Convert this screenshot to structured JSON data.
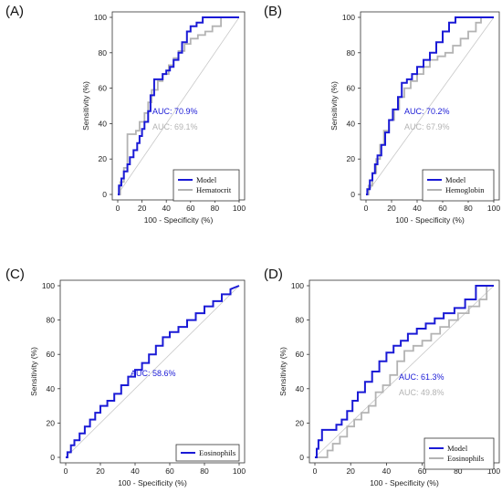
{
  "figure": {
    "panels": [
      "(A)",
      "(B)",
      "(C)",
      "(D)"
    ]
  },
  "colors": {
    "model": "#1a1ad6",
    "comparator": "#b3b3b3",
    "diagonal": "#c8c8c8",
    "axis": "#333333"
  },
  "chart_data": [
    {
      "type": "line",
      "panel": "(A)",
      "xlabel": "100 - Specificity (%)",
      "ylabel": "Sensitivity (%)",
      "xlim": [
        0,
        100
      ],
      "ylim": [
        0,
        100
      ],
      "xticks": [
        0,
        20,
        40,
        60,
        80,
        100
      ],
      "yticks": [
        0,
        20,
        40,
        60,
        80,
        100
      ],
      "legend_position": "bottom-right",
      "annotations": [
        {
          "text": "AUC: 70.9%",
          "series": "Model"
        },
        {
          "text": "AUC: 69.1%",
          "series": "Hematocrit"
        }
      ],
      "series": [
        {
          "name": "Model",
          "color_key": "model",
          "x": [
            0,
            1,
            1,
            3,
            3,
            5,
            5,
            8,
            8,
            10,
            10,
            13,
            13,
            16,
            16,
            18,
            18,
            20,
            20,
            22,
            22,
            25,
            25,
            27,
            27,
            30,
            30,
            33,
            33,
            37,
            37,
            40,
            40,
            43,
            43,
            46,
            46,
            50,
            50,
            53,
            53,
            57,
            57,
            60,
            60,
            65,
            65,
            70,
            70,
            100
          ],
          "y": [
            0,
            0,
            5,
            5,
            9,
            9,
            13,
            13,
            17,
            17,
            21,
            21,
            25,
            25,
            29,
            29,
            33,
            33,
            37,
            37,
            41,
            41,
            47,
            47,
            56,
            56,
            65,
            65,
            65,
            65,
            68,
            68,
            70,
            70,
            72,
            72,
            76,
            76,
            80,
            80,
            86,
            86,
            92,
            92,
            95,
            95,
            97,
            97,
            100,
            100
          ]
        },
        {
          "name": "Hematocrit",
          "color_key": "comparator",
          "x": [
            0,
            2,
            2,
            5,
            5,
            8,
            8,
            10,
            10,
            15,
            15,
            18,
            18,
            22,
            22,
            25,
            25,
            28,
            28,
            33,
            33,
            37,
            37,
            42,
            42,
            46,
            46,
            50,
            50,
            55,
            55,
            60,
            60,
            66,
            66,
            72,
            72,
            78,
            78,
            85,
            85,
            88,
            88,
            100
          ],
          "y": [
            0,
            0,
            7,
            7,
            15,
            15,
            34,
            34,
            34,
            34,
            36,
            36,
            41,
            41,
            46,
            46,
            52,
            52,
            59,
            59,
            64,
            64,
            68,
            68,
            73,
            73,
            77,
            77,
            81,
            81,
            85,
            85,
            88,
            88,
            90,
            90,
            92,
            92,
            95,
            95,
            100,
            100,
            100,
            100
          ]
        }
      ]
    },
    {
      "type": "line",
      "panel": "(B)",
      "xlabel": "100 - Specificity (%)",
      "ylabel": "Sensitivity (%)",
      "xlim": [
        0,
        100
      ],
      "ylim": [
        0,
        100
      ],
      "xticks": [
        0,
        20,
        40,
        60,
        80,
        100
      ],
      "yticks": [
        0,
        20,
        40,
        60,
        80,
        100
      ],
      "legend_position": "bottom-right",
      "annotations": [
        {
          "text": "AUC: 70.2%",
          "series": "Model"
        },
        {
          "text": "AUC: 67.9%",
          "series": "Hemoglobin"
        }
      ],
      "series": [
        {
          "name": "Model",
          "color_key": "model",
          "x": [
            0,
            1,
            1,
            3,
            3,
            5,
            5,
            7,
            7,
            9,
            9,
            12,
            12,
            15,
            15,
            18,
            18,
            21,
            21,
            25,
            25,
            28,
            28,
            32,
            32,
            36,
            36,
            40,
            40,
            45,
            45,
            50,
            50,
            55,
            55,
            60,
            60,
            65,
            65,
            70,
            70,
            100
          ],
          "y": [
            0,
            0,
            3,
            3,
            8,
            8,
            12,
            12,
            17,
            17,
            22,
            22,
            28,
            28,
            35,
            35,
            42,
            42,
            48,
            48,
            55,
            55,
            63,
            63,
            65,
            65,
            68,
            68,
            72,
            72,
            76,
            76,
            80,
            80,
            86,
            86,
            92,
            92,
            97,
            97,
            100,
            100
          ]
        },
        {
          "name": "Hemoglobin",
          "color_key": "comparator",
          "x": [
            0,
            2,
            2,
            5,
            5,
            8,
            8,
            11,
            11,
            14,
            14,
            18,
            18,
            22,
            22,
            26,
            26,
            30,
            30,
            35,
            35,
            40,
            40,
            45,
            45,
            50,
            50,
            56,
            56,
            62,
            62,
            68,
            68,
            74,
            74,
            80,
            80,
            86,
            86,
            90,
            90,
            100
          ],
          "y": [
            0,
            0,
            5,
            5,
            12,
            12,
            20,
            20,
            28,
            28,
            36,
            36,
            42,
            42,
            48,
            48,
            55,
            55,
            60,
            60,
            64,
            64,
            68,
            68,
            72,
            72,
            76,
            76,
            78,
            78,
            80,
            80,
            84,
            84,
            88,
            88,
            92,
            92,
            97,
            97,
            100,
            100
          ]
        }
      ]
    },
    {
      "type": "line",
      "panel": "(C)",
      "xlabel": "100 - Specificity (%)",
      "ylabel": "Sensitivity (%)",
      "xlim": [
        0,
        100
      ],
      "ylim": [
        0,
        100
      ],
      "xticks": [
        0,
        20,
        40,
        60,
        80,
        100
      ],
      "yticks": [
        0,
        20,
        40,
        60,
        80,
        100
      ],
      "legend_position": "bottom-right",
      "annotations": [
        {
          "text": "AUC: 58.6%",
          "series": "Eosinophils"
        }
      ],
      "series": [
        {
          "name": "Eosinophils",
          "color_key": "model",
          "x": [
            0,
            1,
            1,
            3,
            3,
            5,
            5,
            8,
            8,
            11,
            11,
            14,
            14,
            17,
            17,
            20,
            20,
            24,
            24,
            28,
            28,
            32,
            32,
            36,
            36,
            40,
            40,
            44,
            44,
            48,
            48,
            52,
            52,
            56,
            56,
            60,
            60,
            65,
            65,
            70,
            70,
            75,
            75,
            80,
            80,
            85,
            85,
            90,
            90,
            95,
            95,
            100
          ],
          "y": [
            0,
            0,
            3,
            3,
            7,
            7,
            10,
            10,
            14,
            14,
            18,
            18,
            22,
            22,
            26,
            26,
            30,
            30,
            33,
            33,
            37,
            37,
            42,
            42,
            47,
            47,
            51,
            51,
            55,
            55,
            60,
            60,
            65,
            65,
            70,
            70,
            73,
            73,
            76,
            76,
            80,
            80,
            84,
            84,
            88,
            88,
            91,
            91,
            95,
            95,
            98,
            100
          ]
        }
      ]
    },
    {
      "type": "line",
      "panel": "(D)",
      "xlabel": "100 - Specificity (%)",
      "ylabel": "Sensitivity (%)",
      "xlim": [
        0,
        100
      ],
      "ylim": [
        0,
        100
      ],
      "xticks": [
        0,
        20,
        40,
        60,
        80,
        100
      ],
      "yticks": [
        0,
        20,
        40,
        60,
        80,
        100
      ],
      "legend_position": "bottom-right",
      "annotations": [
        {
          "text": "AUC: 61.3%",
          "series": "Model"
        },
        {
          "text": "AUC: 49.8%",
          "series": "Eosinophils"
        }
      ],
      "series": [
        {
          "name": "Model",
          "color_key": "model",
          "x": [
            0,
            1,
            1,
            2,
            2,
            4,
            4,
            8,
            8,
            12,
            12,
            15,
            15,
            18,
            18,
            21,
            21,
            24,
            24,
            28,
            28,
            32,
            32,
            36,
            36,
            40,
            40,
            44,
            44,
            48,
            48,
            52,
            52,
            57,
            57,
            62,
            62,
            67,
            67,
            72,
            72,
            78,
            78,
            84,
            84,
            90,
            90,
            100
          ],
          "y": [
            0,
            0,
            5,
            5,
            10,
            10,
            16,
            16,
            16,
            16,
            19,
            19,
            22,
            22,
            27,
            27,
            33,
            33,
            38,
            38,
            44,
            44,
            50,
            50,
            56,
            56,
            61,
            61,
            65,
            65,
            68,
            68,
            72,
            72,
            75,
            75,
            78,
            78,
            81,
            81,
            84,
            84,
            87,
            87,
            92,
            92,
            100,
            100
          ]
        },
        {
          "name": "Eosinophils",
          "color_key": "comparator",
          "x": [
            0,
            3,
            3,
            7,
            7,
            10,
            10,
            14,
            14,
            18,
            18,
            22,
            22,
            26,
            26,
            30,
            30,
            34,
            34,
            38,
            38,
            42,
            42,
            46,
            46,
            50,
            50,
            55,
            55,
            60,
            60,
            65,
            65,
            70,
            70,
            75,
            75,
            80,
            80,
            86,
            86,
            92,
            92,
            96,
            96,
            100
          ],
          "y": [
            0,
            0,
            0,
            0,
            4,
            4,
            8,
            8,
            12,
            12,
            18,
            18,
            22,
            22,
            26,
            26,
            30,
            30,
            38,
            38,
            42,
            42,
            48,
            48,
            56,
            56,
            62,
            62,
            65,
            65,
            68,
            68,
            72,
            72,
            76,
            76,
            80,
            80,
            84,
            84,
            88,
            88,
            92,
            92,
            100,
            100
          ]
        }
      ]
    }
  ]
}
